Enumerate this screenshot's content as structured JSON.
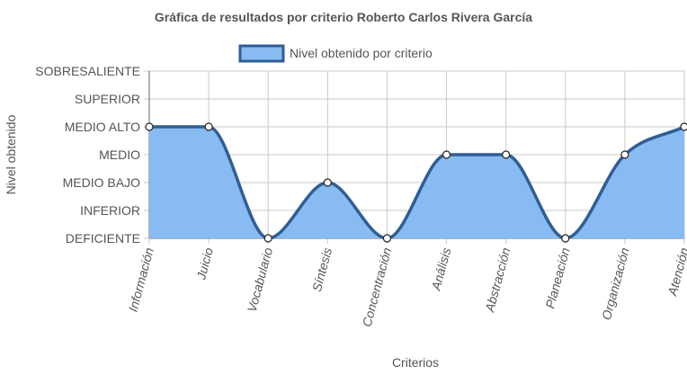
{
  "chart_data": {
    "type": "area",
    "title": "Gráfica de resultados por criterio Roberto Carlos Rivera García",
    "xlabel": "Criterios",
    "ylabel": "Nivel obtenido",
    "legend_position": "top",
    "grid": true,
    "y_levels": [
      "DEFICIENTE",
      "INFERIOR",
      "MEDIO BAJO",
      "MEDIO",
      "MEDIO ALTO",
      "SUPERIOR",
      "SOBRESALIENTE"
    ],
    "ylim": [
      0,
      6
    ],
    "categories": [
      "Información",
      "Juicio",
      "Vocabulario",
      "Síntesis",
      "Concentración",
      "Análisis",
      "Abstracción",
      "Planeación",
      "Organización",
      "Atención"
    ],
    "series": [
      {
        "name": "Nivel obtenido por criterio",
        "values": [
          4,
          4,
          0,
          2,
          0,
          3,
          3,
          0,
          3,
          4
        ],
        "value_labels": [
          "MEDIO ALTO",
          "MEDIO ALTO",
          "DEFICIENTE",
          "MEDIO BAJO",
          "DEFICIENTE",
          "MEDIO",
          "MEDIO",
          "DEFICIENTE",
          "MEDIO",
          "MEDIO ALTO"
        ],
        "fill_color": "#88bbf2",
        "line_color": "#2f5e93"
      }
    ],
    "colors": {
      "grid": "#c9c9c9",
      "axis": "#666666",
      "text": "#555555",
      "title": "#555555",
      "point_fill": "#ffffff",
      "point_stroke": "#222222"
    }
  }
}
